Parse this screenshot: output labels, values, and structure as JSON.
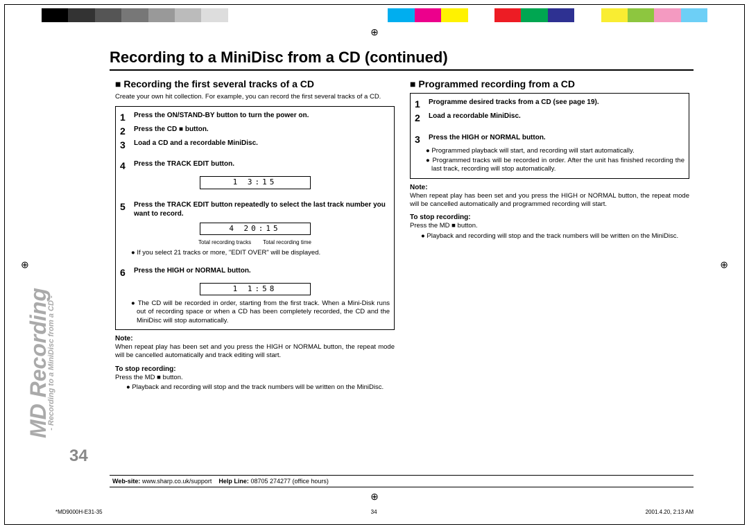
{
  "color_bar": [
    "#000000",
    "#333333",
    "#555555",
    "#777777",
    "#999999",
    "#bbbbbb",
    "#dddddd",
    "#ffffff",
    "#ffffff",
    "#ffffff",
    "#ffffff",
    "#ffffff",
    "#ffffff",
    "#00aeef",
    "#ec008c",
    "#fff200",
    "#ffffff",
    "#ed1c24",
    "#00a651",
    "#2e3192",
    "#ffffff",
    "#f9ed32",
    "#8dc63f",
    "#f49ac1",
    "#6dcff6"
  ],
  "page_title": "Recording to a MiniDisc from a CD (continued)",
  "sidebar": {
    "main": "MD Recording",
    "sub": "- Recording to a MiniDisc from a CD -",
    "page_num": "34"
  },
  "left": {
    "heading": "Recording the first several tracks of a CD",
    "intro": "Create your own hit collection. For example, you can record the first several tracks of a CD.",
    "s1": "Press the ON/STAND-BY button to turn the power on.",
    "s2": "Press the CD ■ button.",
    "s3": "Load a CD and a recordable MiniDisc.",
    "s4": "Press the TRACK EDIT button.",
    "disp1": "1     3:15",
    "s5": "Press the TRACK EDIT button repeatedly to select the last track number you want to record.",
    "disp2": "4    20:15",
    "disp2_l1": "Total recording tracks",
    "disp2_l2": "Total recording time",
    "b1": "If you select 21 tracks or more, \"EDIT OVER\" will be displayed.",
    "s6": "Press the HIGH or NORMAL button.",
    "disp3": "1     1:58",
    "b2": "The CD will be recorded in order, starting from the first track. When a Mini-Disk runs out of recording space or when a CD has been completely recorded, the CD and the MiniDisc will stop automatically.",
    "note_h": "Note:",
    "note": "When repeat play has been set and you press the HIGH or NORMAL button, the repeat mode will be cancelled automatically and track editing will start.",
    "stop_h": "To stop recording:",
    "stop1": "Press the MD ■ button.",
    "stop2": "Playback and recording will stop and the track numbers will be written on the MiniDisc."
  },
  "right": {
    "heading": "Programmed recording from a CD",
    "s1": "Programme desired tracks from a CD (see page 19).",
    "s2": "Load a recordable MiniDisc.",
    "s3": "Press the HIGH or NORMAL button.",
    "b1": "Programmed playback will start, and recording will start automatically.",
    "b2": "Programmed tracks will be recorded in order. After the unit has finished recording the last track, recording will stop automatically.",
    "note_h": "Note:",
    "note": "When repeat play has been set and you press the HIGH or NORMAL button, the repeat mode will be cancelled automatically and programmed recording will start.",
    "stop_h": "To stop recording:",
    "stop1": "Press the MD ■ button.",
    "stop2": "Playback and recording will stop and the track numbers will be written on the MiniDisc."
  },
  "footer": {
    "web_label": "Web-site:",
    "web": "www.sharp.co.uk/support",
    "help_label": "Help Line:",
    "help": "08705 274277 (office hours)"
  },
  "meta": {
    "file": "*MD9000H-E31-35",
    "page": "34",
    "date": "2001.4.20, 2:13 AM"
  }
}
